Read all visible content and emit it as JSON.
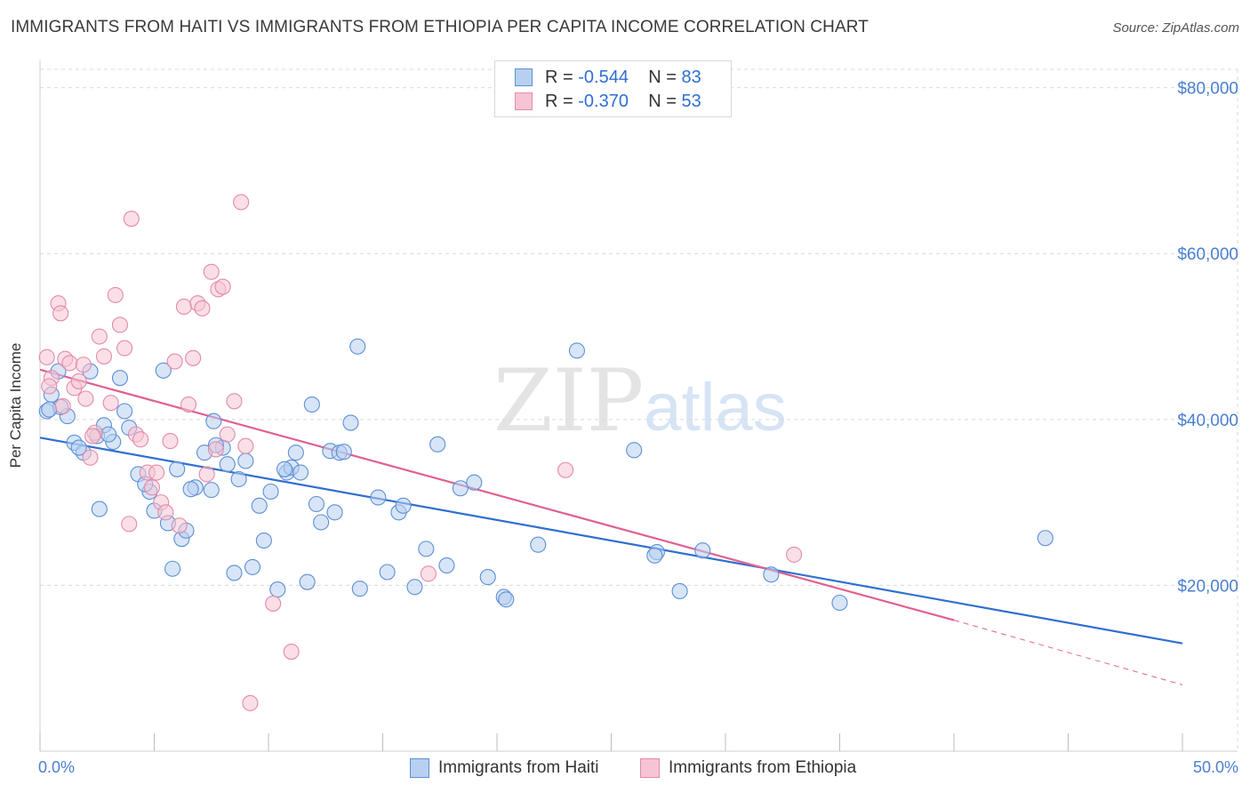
{
  "title": "IMMIGRANTS FROM HAITI VS IMMIGRANTS FROM ETHIOPIA PER CAPITA INCOME CORRELATION CHART",
  "source": "Source: ZipAtlas.com",
  "watermark": {
    "zip": "ZIP",
    "atlas": "atlas"
  },
  "legend": {
    "r_label": "R =",
    "n_label": "N =",
    "series": [
      {
        "r": "-0.544",
        "n": "83"
      },
      {
        "r": "-0.370",
        "n": "53"
      }
    ]
  },
  "chart_data": {
    "type": "scatter",
    "title": "IMMIGRANTS FROM HAITI VS IMMIGRANTS FROM ETHIOPIA PER CAPITA INCOME CORRELATION CHART",
    "xlabel": "",
    "ylabel": "Per Capita Income",
    "xlim": [
      0,
      50
    ],
    "ylim": [
      0,
      82000
    ],
    "x_tick_labels": [
      "0.0%",
      "50.0%"
    ],
    "y_ticks": [
      20000,
      40000,
      60000,
      80000
    ],
    "y_tick_labels": [
      "$20,000",
      "$40,000",
      "$60,000",
      "$80,000"
    ],
    "grid": true,
    "series": [
      {
        "name": "Immigrants from Haiti",
        "color": "#5b8fd6",
        "fill": "#b8d0f0",
        "line_color": "#2f6fd0",
        "trend": {
          "x0": 0,
          "y0": 37800,
          "x1": 50,
          "y1": 13000
        },
        "points": [
          [
            0.3,
            41000
          ],
          [
            0.5,
            43000
          ],
          [
            0.8,
            45800
          ],
          [
            1.2,
            40400
          ],
          [
            1.5,
            37200
          ],
          [
            1.9,
            36000
          ],
          [
            2.2,
            45800
          ],
          [
            2.5,
            38000
          ],
          [
            2.6,
            29200
          ],
          [
            2.8,
            39300
          ],
          [
            3.2,
            37300
          ],
          [
            3.5,
            45000
          ],
          [
            3.7,
            41000
          ],
          [
            3.9,
            39000
          ],
          [
            4.3,
            33400
          ],
          [
            4.8,
            31300
          ],
          [
            5.0,
            29000
          ],
          [
            5.4,
            45900
          ],
          [
            5.6,
            27500
          ],
          [
            5.8,
            22000
          ],
          [
            6.0,
            34000
          ],
          [
            6.2,
            25600
          ],
          [
            6.4,
            26600
          ],
          [
            6.8,
            31800
          ],
          [
            7.2,
            36000
          ],
          [
            7.5,
            31500
          ],
          [
            7.6,
            39800
          ],
          [
            8.0,
            36600
          ],
          [
            8.5,
            21500
          ],
          [
            8.7,
            32800
          ],
          [
            9.0,
            35000
          ],
          [
            9.3,
            22200
          ],
          [
            9.6,
            29600
          ],
          [
            9.8,
            25400
          ],
          [
            10.1,
            31300
          ],
          [
            10.4,
            19500
          ],
          [
            10.8,
            33600
          ],
          [
            11.0,
            34200
          ],
          [
            11.2,
            36000
          ],
          [
            11.4,
            33600
          ],
          [
            11.7,
            20400
          ],
          [
            11.9,
            41800
          ],
          [
            12.1,
            29800
          ],
          [
            12.3,
            27600
          ],
          [
            12.7,
            36200
          ],
          [
            12.9,
            28800
          ],
          [
            13.1,
            36000
          ],
          [
            13.6,
            39600
          ],
          [
            13.9,
            48800
          ],
          [
            14.0,
            19600
          ],
          [
            14.8,
            30600
          ],
          [
            15.2,
            21600
          ],
          [
            15.7,
            28800
          ],
          [
            16.4,
            19800
          ],
          [
            16.9,
            24400
          ],
          [
            17.4,
            37000
          ],
          [
            17.8,
            22400
          ],
          [
            18.4,
            31700
          ],
          [
            19.0,
            32400
          ],
          [
            19.6,
            21000
          ],
          [
            20.3,
            18600
          ],
          [
            21.8,
            24900
          ],
          [
            23.5,
            48300
          ],
          [
            26.0,
            36300
          ],
          [
            27.0,
            24000
          ],
          [
            28.0,
            19300
          ],
          [
            29.0,
            24200
          ],
          [
            32.0,
            21300
          ],
          [
            35.0,
            17900
          ],
          [
            44.0,
            25700
          ],
          [
            0.9,
            41500
          ],
          [
            1.7,
            36600
          ],
          [
            3.0,
            38200
          ],
          [
            4.6,
            32200
          ],
          [
            6.6,
            31600
          ],
          [
            8.2,
            34600
          ],
          [
            10.7,
            34000
          ],
          [
            13.3,
            36100
          ],
          [
            15.9,
            29600
          ],
          [
            20.4,
            18300
          ],
          [
            26.9,
            23600
          ],
          [
            0.4,
            41200
          ],
          [
            7.7,
            36900
          ]
        ]
      },
      {
        "name": "Immigrants from Ethiopia",
        "color": "#e48aa8",
        "fill": "#f6c4d4",
        "line_color": "#e06090",
        "trend": {
          "x0": 0,
          "y0": 46000,
          "x1": 40,
          "y1": 15800
        },
        "trend_dashed": {
          "x0": 40,
          "y0": 15800,
          "x1": 50,
          "y1": 8000
        },
        "points": [
          [
            0.3,
            47500
          ],
          [
            0.5,
            45000
          ],
          [
            0.8,
            54000
          ],
          [
            0.9,
            52800
          ],
          [
            1.1,
            47300
          ],
          [
            1.3,
            46800
          ],
          [
            1.5,
            43800
          ],
          [
            1.7,
            44600
          ],
          [
            1.9,
            46600
          ],
          [
            2.0,
            42500
          ],
          [
            2.2,
            35400
          ],
          [
            2.4,
            38400
          ],
          [
            2.6,
            50000
          ],
          [
            2.8,
            47600
          ],
          [
            3.1,
            42000
          ],
          [
            3.3,
            55000
          ],
          [
            3.5,
            51400
          ],
          [
            3.7,
            48600
          ],
          [
            3.9,
            27400
          ],
          [
            4.0,
            64200
          ],
          [
            4.2,
            38200
          ],
          [
            4.4,
            37600
          ],
          [
            4.7,
            33600
          ],
          [
            4.9,
            31800
          ],
          [
            5.1,
            33600
          ],
          [
            5.3,
            30000
          ],
          [
            5.5,
            28800
          ],
          [
            5.7,
            37400
          ],
          [
            5.9,
            47000
          ],
          [
            6.1,
            27200
          ],
          [
            6.3,
            53600
          ],
          [
            6.5,
            41800
          ],
          [
            6.7,
            47400
          ],
          [
            6.9,
            54000
          ],
          [
            7.1,
            53400
          ],
          [
            7.3,
            33400
          ],
          [
            7.5,
            57800
          ],
          [
            7.7,
            36400
          ],
          [
            7.8,
            55700
          ],
          [
            8.0,
            56000
          ],
          [
            8.2,
            38200
          ],
          [
            8.5,
            42200
          ],
          [
            8.8,
            66200
          ],
          [
            9.0,
            36800
          ],
          [
            9.2,
            5800
          ],
          [
            10.2,
            17800
          ],
          [
            11.0,
            12000
          ],
          [
            17.0,
            21400
          ],
          [
            23.0,
            33900
          ],
          [
            33.0,
            23700
          ],
          [
            0.4,
            44000
          ],
          [
            1.0,
            41600
          ],
          [
            2.3,
            38000
          ]
        ]
      }
    ]
  }
}
